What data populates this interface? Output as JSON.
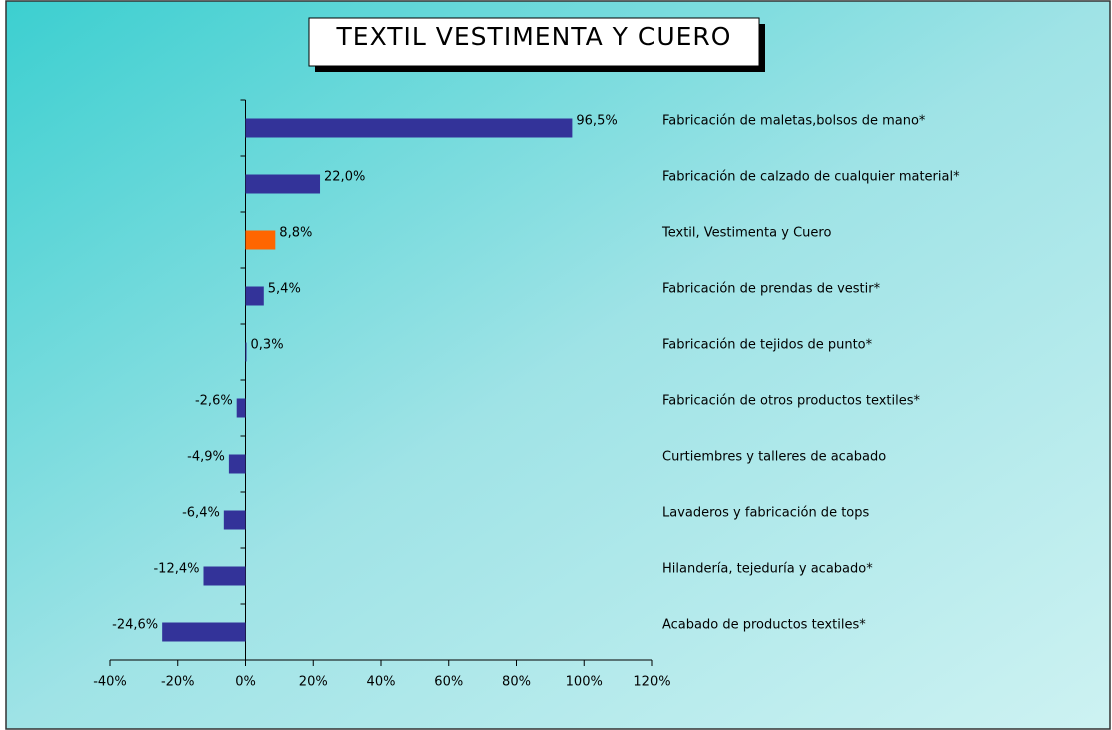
{
  "chart_data": {
    "type": "hbar",
    "title": "TEXTIL VESTIMENTA Y CUERO",
    "categories": [
      "Fabricación de maletas,bolsos de mano*",
      "Fabricación de calzado de cualquier material*",
      "Textil, Vestimenta y Cuero",
      "Fabricación de prendas de vestir*",
      "Fabricación de tejidos de punto*",
      "Fabricación de otros productos textiles*",
      "Curtiembres y talleres de acabado",
      "Lavaderos y fabricación de tops",
      "Hilandería, tejeduría y acabado*",
      "Acabado de productos textiles*"
    ],
    "values": [
      96.5,
      22.0,
      8.8,
      5.4,
      0.3,
      -2.6,
      -4.9,
      -6.4,
      -12.4,
      -24.6
    ],
    "value_labels": [
      "96,5%",
      "22,0%",
      "8,8%",
      "5,4%",
      "0,3%",
      "-2,6%",
      "-4,9%",
      "-6,4%",
      "-12,4%",
      "-24,6%"
    ],
    "colors": [
      "#333399",
      "#333399",
      "#ff6600",
      "#333399",
      "#333399",
      "#333399",
      "#333399",
      "#333399",
      "#333399",
      "#333399"
    ],
    "xlim": [
      -40,
      120
    ],
    "xticks": [
      {
        "value": -40,
        "label": "-40%"
      },
      {
        "value": -20,
        "label": "-20%"
      },
      {
        "value": 0,
        "label": "0%"
      },
      {
        "value": 20,
        "label": "20%"
      },
      {
        "value": 40,
        "label": "40%"
      },
      {
        "value": 60,
        "label": "60%"
      },
      {
        "value": 80,
        "label": "80%"
      },
      {
        "value": 100,
        "label": "100%"
      },
      {
        "value": 120,
        "label": "120%"
      }
    ],
    "grid": false
  }
}
